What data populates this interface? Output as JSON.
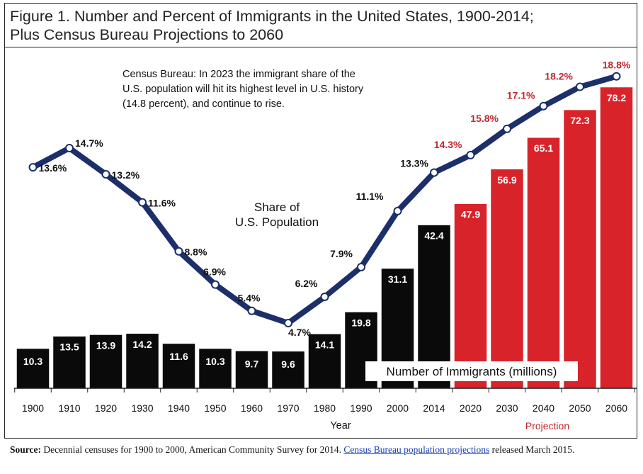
{
  "title_line1": "Figure 1. Number and Percent of Immigrants in the United States, 1900-2014;",
  "title_line2": "Plus Census Bureau Projections to 2060",
  "annotation": [
    "Census Bureau: In 2023 the immigrant share of the",
    "U.S. population will hit its highest level in U.S. history",
    "(14.8 percent), and continue to rise."
  ],
  "share_label": [
    "Share of",
    "U.S. Population"
  ],
  "number_label": "Number of Immigrants (millions)",
  "projection_label": "Projection",
  "source": {
    "prefix": "Source:",
    "text": " Decennial censuses for 1900 to 2000, American Community Survey for 2014. ",
    "link": "Census Bureau population projections",
    "suffix": " released March 2015."
  },
  "colors": {
    "historical_bar": "#0a0a0a",
    "projection_bar": "#d8232a",
    "line": "#1c2f6b",
    "projection_text": "#c0282e"
  },
  "chart_data": {
    "type": "bar",
    "xlabel": "Year",
    "categories": [
      "1900",
      "1910",
      "1920",
      "1930",
      "1940",
      "1950",
      "1960",
      "1970",
      "1980",
      "1990",
      "2000",
      "2014",
      "2020",
      "2030",
      "2040",
      "2050",
      "2060"
    ],
    "projected_from": "2020",
    "series": [
      {
        "name": "Number of Immigrants (millions)",
        "type": "bar",
        "values": [
          10.3,
          13.5,
          13.9,
          14.2,
          11.6,
          10.3,
          9.7,
          9.6,
          14.1,
          19.8,
          31.1,
          42.4,
          47.9,
          56.9,
          65.1,
          72.3,
          78.2
        ]
      },
      {
        "name": "Share of U.S. Population",
        "type": "line",
        "values": [
          13.6,
          14.7,
          13.2,
          11.6,
          8.8,
          6.9,
          5.4,
          4.7,
          6.2,
          7.9,
          11.1,
          13.3,
          14.3,
          15.8,
          17.1,
          18.2,
          18.8
        ],
        "labels": [
          "13.6%",
          "14.7%",
          "13.2%",
          "11.6%",
          "8.8%",
          "6.9%",
          "5.4%",
          "4.7%",
          "6.2%",
          "7.9%",
          "11.1%",
          "13.3%",
          "14.3%",
          "15.8%",
          "17.1%",
          "18.2%",
          "18.8%"
        ]
      }
    ],
    "bar_labels": [
      "10.3",
      "13.5",
      "13.9",
      "14.2",
      "11.6",
      "10.3",
      "9.7",
      "9.6",
      "14.1",
      "19.8",
      "31.1",
      "42.4",
      "47.9",
      "56.9",
      "65.1",
      "72.3",
      "78.2"
    ],
    "grid": false,
    "legend": "none"
  }
}
